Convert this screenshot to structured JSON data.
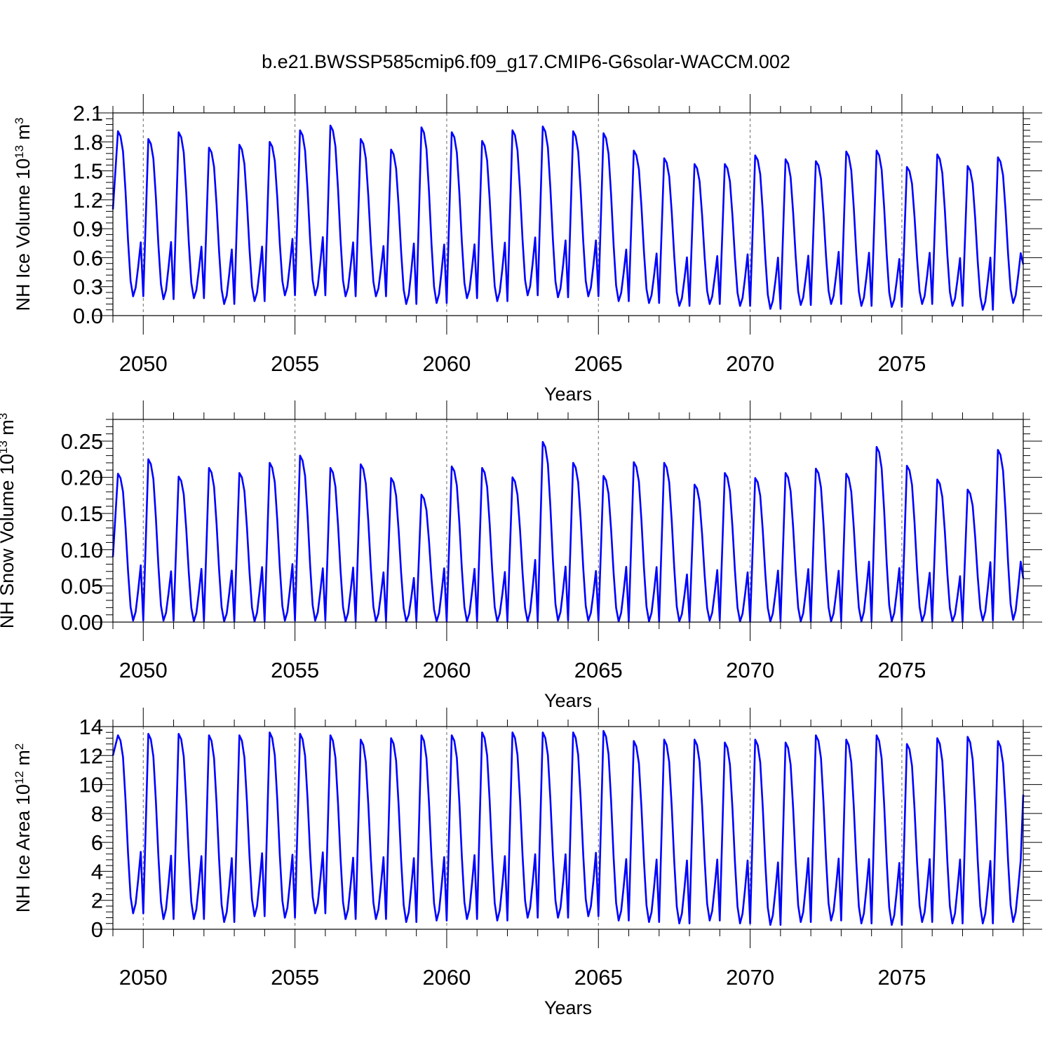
{
  "title": "b.e21.BWSSP585cmip6.f09_g17.CMIP6-G6solar-WACCM.002",
  "colors": {
    "line": "#0000ff",
    "axis": "#000000",
    "grid": "#666666"
  },
  "chart_data": [
    {
      "type": "line",
      "id": "ice-volume",
      "ylabel_main": "NH Ice Volume 10",
      "ylabel_exp": "13",
      "ylabel_unit": " m",
      "ylabel_unit_exp": "3",
      "xlabel": "Years",
      "xlim": [
        2049.0,
        2079.0
      ],
      "ylim": [
        0.0,
        2.1
      ],
      "yticks": [
        "0.0",
        "0.3",
        "0.6",
        "0.9",
        "1.2",
        "1.5",
        "1.8",
        "2.1"
      ],
      "ytick_values": [
        0.0,
        0.3,
        0.6,
        0.9,
        1.2,
        1.5,
        1.8,
        2.1
      ],
      "xticks": [
        "2050",
        "2055",
        "2060",
        "2065",
        "2070",
        "2075"
      ],
      "xtick_values": [
        2050,
        2055,
        2060,
        2065,
        2070,
        2075
      ],
      "grid": "vertical dashed at major x ticks",
      "start": 1.1,
      "end": 0.53,
      "maxima": [
        1.91,
        1.83,
        1.9,
        1.74,
        1.77,
        1.8,
        1.92,
        1.97,
        1.83,
        1.72,
        1.95,
        1.9,
        1.81,
        1.92,
        1.96,
        1.91,
        1.89,
        1.71,
        1.63,
        1.57,
        1.57,
        1.66,
        1.62,
        1.6,
        1.7,
        1.71,
        1.54,
        1.67,
        1.55,
        1.64
      ],
      "minima": [
        0.2,
        0.17,
        0.18,
        0.12,
        0.15,
        0.21,
        0.21,
        0.2,
        0.2,
        0.12,
        0.13,
        0.18,
        0.15,
        0.21,
        0.19,
        0.2,
        0.15,
        0.13,
        0.1,
        0.12,
        0.1,
        0.07,
        0.11,
        0.12,
        0.1,
        0.09,
        0.12,
        0.1,
        0.06,
        0.13
      ]
    },
    {
      "type": "line",
      "id": "snow-volume",
      "ylabel_main": "NH Snow Volume 10",
      "ylabel_exp": "13",
      "ylabel_unit": " m",
      "ylabel_unit_exp": "3",
      "xlabel": "Years",
      "xlim": [
        2049.0,
        2079.0
      ],
      "ylim": [
        0.0,
        0.28
      ],
      "yticks": [
        "0.00",
        "0.05",
        "0.10",
        "0.15",
        "0.20",
        "0.25"
      ],
      "ytick_values": [
        0.0,
        0.05,
        0.1,
        0.15,
        0.2,
        0.25
      ],
      "xticks": [
        "2050",
        "2055",
        "2060",
        "2065",
        "2070",
        "2075"
      ],
      "xtick_values": [
        2050,
        2055,
        2060,
        2065,
        2070,
        2075
      ],
      "grid": "vertical dashed at major x ticks",
      "start": 0.09,
      "end": 0.06,
      "maxima": [
        0.205,
        0.225,
        0.201,
        0.213,
        0.206,
        0.22,
        0.23,
        0.213,
        0.218,
        0.199,
        0.176,
        0.215,
        0.213,
        0.2,
        0.249,
        0.22,
        0.202,
        0.221,
        0.22,
        0.19,
        0.206,
        0.199,
        0.206,
        0.212,
        0.205,
        0.242,
        0.216,
        0.197,
        0.183,
        0.238
      ],
      "minima": [
        0.002,
        0.002,
        0.001,
        0.001,
        0.001,
        0.002,
        0.002,
        0.001,
        0.001,
        0.001,
        0.001,
        0.001,
        0.001,
        0.001,
        0.002,
        0.002,
        0.001,
        0.001,
        0.001,
        0.002,
        0.001,
        0.001,
        0.001,
        0.001,
        0.001,
        0.001,
        0.001,
        0.001,
        0.002,
        0.003
      ]
    },
    {
      "type": "line",
      "id": "ice-area",
      "ylabel_main": "NH Ice Area 10",
      "ylabel_exp": "12",
      "ylabel_unit": " m",
      "ylabel_unit_exp": "2",
      "xlabel": "Years",
      "xlim": [
        2049.0,
        2079.0
      ],
      "ylim": [
        0,
        14
      ],
      "yticks": [
        "0",
        "2",
        "4",
        "6",
        "8",
        "10",
        "12",
        "14"
      ],
      "ytick_values": [
        0,
        2,
        4,
        6,
        8,
        10,
        12,
        14
      ],
      "xticks": [
        "2050",
        "2055",
        "2060",
        "2065",
        "2070",
        "2075"
      ],
      "xtick_values": [
        2050,
        2055,
        2060,
        2065,
        2070,
        2075
      ],
      "grid": "vertical dashed at major x ticks",
      "start": 12.0,
      "end": 9.3,
      "maxima": [
        13.4,
        13.5,
        13.5,
        13.4,
        13.4,
        13.6,
        13.5,
        13.4,
        13.1,
        13.2,
        13.4,
        13.4,
        13.6,
        13.6,
        13.6,
        13.6,
        13.7,
        13.0,
        13.1,
        13.1,
        12.9,
        13.1,
        12.9,
        13.4,
        13.1,
        13.4,
        12.8,
        13.2,
        13.3,
        13.0
      ],
      "minima": [
        1.1,
        0.7,
        0.7,
        0.5,
        0.9,
        0.8,
        1.1,
        0.7,
        0.7,
        0.5,
        0.6,
        0.7,
        0.6,
        0.8,
        0.8,
        0.9,
        0.6,
        0.5,
        0.4,
        0.6,
        0.4,
        0.3,
        0.5,
        0.6,
        0.4,
        0.3,
        0.5,
        0.4,
        0.4,
        0.5
      ]
    }
  ]
}
